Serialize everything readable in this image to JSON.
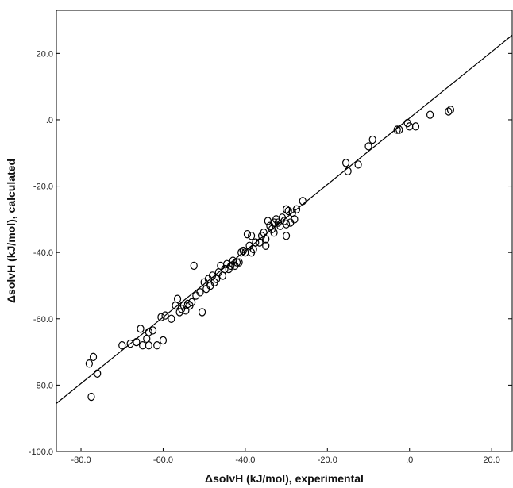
{
  "chart_data": {
    "type": "scatter",
    "title": "",
    "xlabel": "ΔsolvH (kJ/mol), experimental",
    "ylabel": "ΔsolvH (kJ/mol), calculated",
    "xlim": [
      -86,
      25
    ],
    "ylim": [
      -100,
      33
    ],
    "x_ticks": [
      -80,
      -60,
      -40,
      -20,
      0,
      20
    ],
    "x_tick_labels": [
      "-80.0",
      "-60.0",
      "-40.0",
      "-20.0",
      ".0",
      "20.0"
    ],
    "y_ticks": [
      20,
      0,
      -20,
      -40,
      -60,
      -80,
      -100
    ],
    "y_tick_labels": [
      "20.0",
      ".0",
      "-20.0",
      "-40.0",
      "-60.0",
      "-80.0",
      "-100.0"
    ],
    "grid": false,
    "legend": "none",
    "marker_color": "#000000",
    "fit_line": {
      "x": [
        -86,
        25
      ],
      "y": [
        -85.5,
        25.5
      ]
    },
    "points": [
      {
        "x": -78,
        "y": -73.5
      },
      {
        "x": -77,
        "y": -71.5
      },
      {
        "x": -77.5,
        "y": -83.5
      },
      {
        "x": -76,
        "y": -76.5
      },
      {
        "x": -70,
        "y": -68
      },
      {
        "x": -68,
        "y": -67.5
      },
      {
        "x": -66.5,
        "y": -67
      },
      {
        "x": -65.5,
        "y": -63
      },
      {
        "x": -65,
        "y": -68
      },
      {
        "x": -64,
        "y": -66
      },
      {
        "x": -63.5,
        "y": -68
      },
      {
        "x": -63.5,
        "y": -64
      },
      {
        "x": -62.5,
        "y": -63.5
      },
      {
        "x": -61.5,
        "y": -68
      },
      {
        "x": -60.5,
        "y": -59.5
      },
      {
        "x": -60,
        "y": -66.5
      },
      {
        "x": -59.5,
        "y": -59
      },
      {
        "x": -58,
        "y": -60
      },
      {
        "x": -57,
        "y": -56
      },
      {
        "x": -56.5,
        "y": -54
      },
      {
        "x": -56,
        "y": -58
      },
      {
        "x": -55.5,
        "y": -57
      },
      {
        "x": -55,
        "y": -56
      },
      {
        "x": -54.5,
        "y": -57.5
      },
      {
        "x": -54,
        "y": -55.5
      },
      {
        "x": -53.5,
        "y": -56
      },
      {
        "x": -53,
        "y": -55
      },
      {
        "x": -52.5,
        "y": -44
      },
      {
        "x": -52,
        "y": -53
      },
      {
        "x": -51,
        "y": -52
      },
      {
        "x": -50.5,
        "y": -58
      },
      {
        "x": -50,
        "y": -49
      },
      {
        "x": -49.5,
        "y": -51
      },
      {
        "x": -49,
        "y": -48
      },
      {
        "x": -48.5,
        "y": -50
      },
      {
        "x": -48,
        "y": -47
      },
      {
        "x": -47.5,
        "y": -49
      },
      {
        "x": -47,
        "y": -48
      },
      {
        "x": -46.5,
        "y": -46
      },
      {
        "x": -46,
        "y": -44
      },
      {
        "x": -45.5,
        "y": -47
      },
      {
        "x": -45,
        "y": -45
      },
      {
        "x": -44.5,
        "y": -43.5
      },
      {
        "x": -44,
        "y": -45
      },
      {
        "x": -43.5,
        "y": -44
      },
      {
        "x": -43,
        "y": -42.5
      },
      {
        "x": -42.5,
        "y": -44
      },
      {
        "x": -42,
        "y": -43
      },
      {
        "x": -41.5,
        "y": -43
      },
      {
        "x": -41,
        "y": -40
      },
      {
        "x": -40.5,
        "y": -39.5
      },
      {
        "x": -40,
        "y": -40
      },
      {
        "x": -39.5,
        "y": -34.5
      },
      {
        "x": -39,
        "y": -38
      },
      {
        "x": -38.5,
        "y": -35
      },
      {
        "x": -38.5,
        "y": -40
      },
      {
        "x": -38,
        "y": -39
      },
      {
        "x": -37.5,
        "y": -37
      },
      {
        "x": -36.5,
        "y": -37
      },
      {
        "x": -36,
        "y": -35
      },
      {
        "x": -35.5,
        "y": -34
      },
      {
        "x": -35,
        "y": -36
      },
      {
        "x": -35,
        "y": -38
      },
      {
        "x": -34.5,
        "y": -30.5
      },
      {
        "x": -34,
        "y": -32
      },
      {
        "x": -33.5,
        "y": -33
      },
      {
        "x": -33,
        "y": -31
      },
      {
        "x": -33,
        "y": -34
      },
      {
        "x": -32.5,
        "y": -30
      },
      {
        "x": -32,
        "y": -31
      },
      {
        "x": -31.5,
        "y": -32
      },
      {
        "x": -31,
        "y": -29.5
      },
      {
        "x": -30.5,
        "y": -30.5
      },
      {
        "x": -30,
        "y": -31.5
      },
      {
        "x": -30,
        "y": -35
      },
      {
        "x": -30,
        "y": -27
      },
      {
        "x": -29.5,
        "y": -27.5
      },
      {
        "x": -29,
        "y": -31
      },
      {
        "x": -28.5,
        "y": -28
      },
      {
        "x": -28,
        "y": -30
      },
      {
        "x": -27.5,
        "y": -27
      },
      {
        "x": -26,
        "y": -24.5
      },
      {
        "x": -15.5,
        "y": -13
      },
      {
        "x": -15,
        "y": -15.5
      },
      {
        "x": -12.5,
        "y": -13.5
      },
      {
        "x": -10,
        "y": -8
      },
      {
        "x": -9,
        "y": -6
      },
      {
        "x": -3,
        "y": -3
      },
      {
        "x": -2.5,
        "y": -3
      },
      {
        "x": -0.5,
        "y": -1
      },
      {
        "x": 0,
        "y": -2
      },
      {
        "x": 1.5,
        "y": -2
      },
      {
        "x": 5,
        "y": 1.5
      },
      {
        "x": 9.5,
        "y": 2.5
      },
      {
        "x": 10,
        "y": 3
      }
    ]
  }
}
